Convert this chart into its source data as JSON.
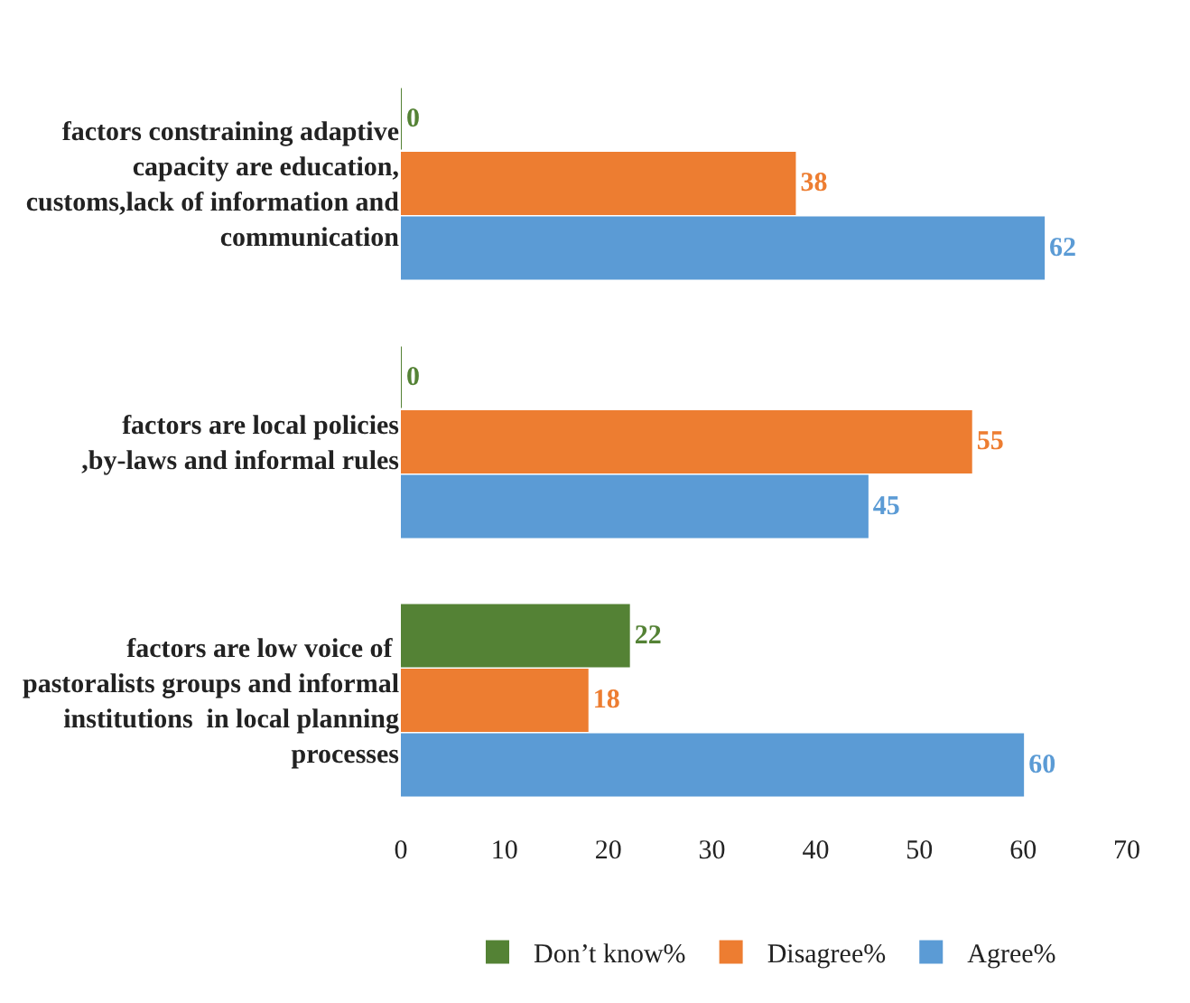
{
  "chart_data": {
    "type": "bar",
    "orientation": "horizontal",
    "categories": [
      "factors constraining adaptive capacity are education, customs,lack of information and communication",
      "factors are local policies ,by-laws and informal rules",
      "factors are low voice of  pastoralists groups and informal institutions  in local planning processes"
    ],
    "series": [
      {
        "name": "Don’t know%",
        "color": "#548235",
        "values": [
          0,
          0,
          22
        ]
      },
      {
        "name": "Disagree%",
        "color": "#ed7d31",
        "values": [
          38,
          55,
          18
        ]
      },
      {
        "name": "Agree%",
        "color": "#5b9bd5",
        "values": [
          62,
          45,
          60
        ]
      }
    ],
    "xlim": [
      0,
      70
    ],
    "xticks": [
      0,
      10,
      20,
      30,
      40,
      50,
      60,
      70
    ],
    "legend": "bottom",
    "data_labels": true
  }
}
